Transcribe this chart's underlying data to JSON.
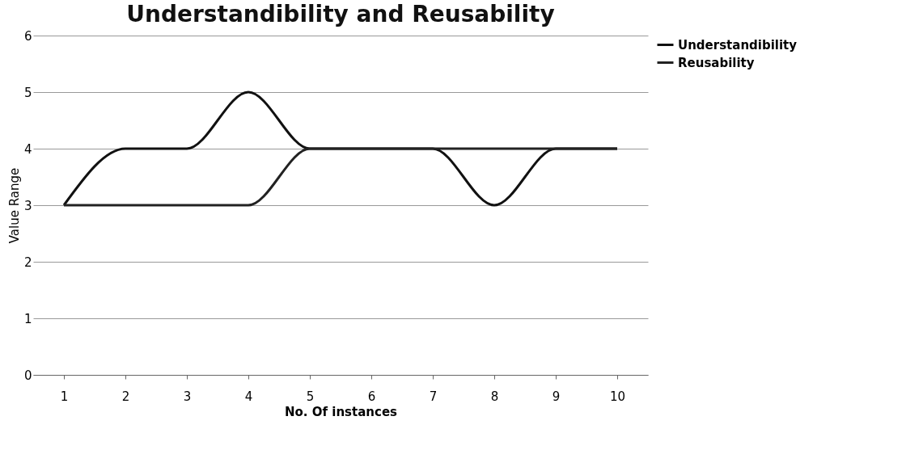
{
  "chart_data": {
    "type": "line",
    "title": "Understandibility and Reusability",
    "xlabel": "No. Of instances",
    "ylabel": "Value Range",
    "categories": [
      "1",
      "2",
      "3",
      "4",
      "5",
      "6",
      "7",
      "8",
      "9",
      "10"
    ],
    "series": [
      {
        "name": "Understandibility",
        "color": "#111111",
        "values": [
          3,
          4,
          4,
          5,
          4,
          4,
          4,
          3,
          4,
          4
        ]
      },
      {
        "name": "Reusability",
        "color": "#222222",
        "values": [
          3,
          3,
          3,
          3,
          4,
          4,
          4,
          4,
          4,
          4
        ]
      }
    ],
    "ylim": [
      0,
      6
    ],
    "yticks": [
      0,
      1,
      2,
      3,
      4,
      5,
      6
    ],
    "grid": "y",
    "legend": "right",
    "line_style": "solid"
  }
}
